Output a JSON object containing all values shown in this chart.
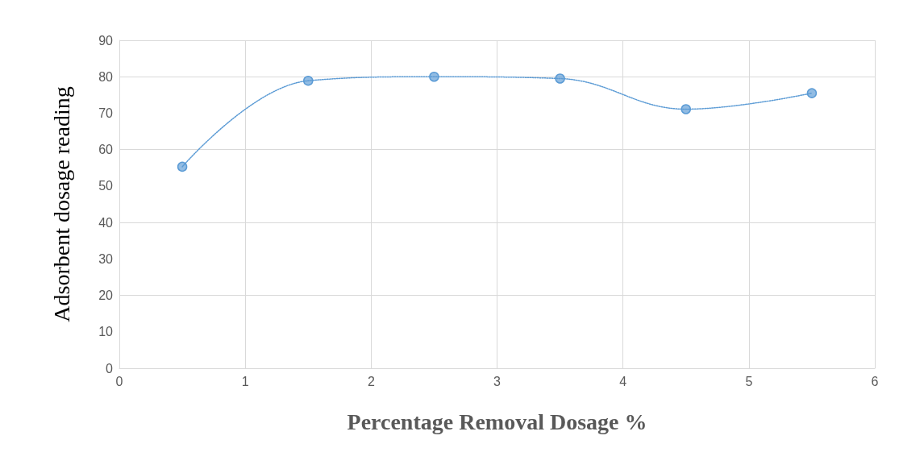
{
  "chart_data": {
    "type": "line",
    "xlabel": "Percentage Removal Dosage %",
    "ylabel": "Adsorbent dosage reading",
    "x": [
      0.5,
      1.5,
      2.5,
      3.5,
      4.5,
      5.5
    ],
    "series": [
      {
        "color": "#5b9bd5",
        "values": [
          55.3,
          78.9,
          80,
          79.5,
          71.1,
          75.5
        ]
      }
    ],
    "xlim": [
      0,
      6
    ],
    "xticks": [
      0,
      1,
      2,
      3,
      4,
      5,
      6
    ],
    "ylim": [
      0,
      90
    ],
    "yticks": [
      0,
      10,
      20,
      30,
      40,
      50,
      60,
      70,
      80,
      90
    ],
    "grid": true,
    "marker": "circle",
    "line_style": "dotted"
  }
}
